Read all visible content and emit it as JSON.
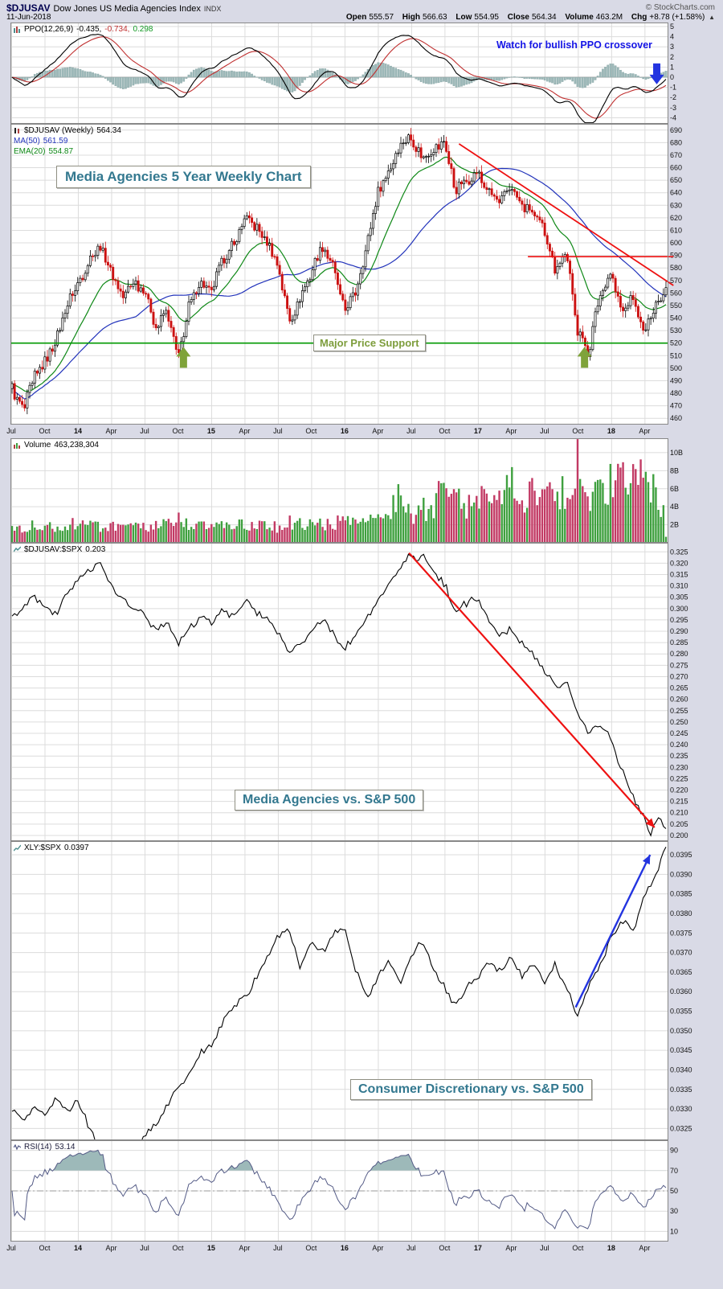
{
  "header": {
    "symbol": "$DJUSAV",
    "name": "Dow Jones US Media Agencies Index",
    "exchange": "INDX",
    "credit": "© StockCharts.com",
    "date": "11-Jun-2018",
    "quote": {
      "open_label": "Open",
      "open": "555.57",
      "high_label": "High",
      "high": "566.63",
      "low_label": "Low",
      "low": "554.95",
      "close_label": "Close",
      "close": "564.34",
      "volume_label": "Volume",
      "volume": "463.2M",
      "chg_label": "Chg",
      "chg": "+8.78 (+1.58%)",
      "chg_arrow": "▲"
    }
  },
  "annotations": {
    "ppo_note": "Watch for bullish PPO crossover",
    "weekly_title": "Media Agencies 5 Year Weekly Chart",
    "support_label": "Major Price Support",
    "ratio_label": "Media Agencies vs. S&P 500",
    "xly_label": "Consumer Discretionary vs. S&P 500"
  },
  "colors": {
    "background": "#d9dae6",
    "panel_bg": "#ffffff",
    "grid": "#dcdcdc",
    "frame": "#888888",
    "up_candle": "#000000",
    "down_candle": "#cc1111",
    "ma50": "#2233bb",
    "ema20": "#0e8816",
    "vol_up": "#3fa03f",
    "vol_down": "#c23a64",
    "ppo_line": "#000000",
    "ppo_signal": "#c03030",
    "ppo_hist_fill": "#9db9b9",
    "ppo_hist_edge": "#7e9c9c",
    "ratio_line": "#000000",
    "rsi_line": "#545b86",
    "rsi_fill": "#9db9b9",
    "trend_red": "#ee1111",
    "support_green": "#009900",
    "arrow_green": "#7fa33a",
    "arrow_blue": "#2334e0"
  },
  "axis": {
    "ticks": [
      {
        "m": 0,
        "label": "Jul",
        "year": false
      },
      {
        "m": 3,
        "label": "Oct",
        "year": false
      },
      {
        "m": 6,
        "label": "14",
        "year": true
      },
      {
        "m": 9,
        "label": "Apr",
        "year": false
      },
      {
        "m": 12,
        "label": "Jul",
        "year": false
      },
      {
        "m": 15,
        "label": "Oct",
        "year": false
      },
      {
        "m": 18,
        "label": "15",
        "year": true
      },
      {
        "m": 21,
        "label": "Apr",
        "year": false
      },
      {
        "m": 24,
        "label": "Jul",
        "year": false
      },
      {
        "m": 27,
        "label": "Oct",
        "year": false
      },
      {
        "m": 30,
        "label": "16",
        "year": true
      },
      {
        "m": 33,
        "label": "Apr",
        "year": false
      },
      {
        "m": 36,
        "label": "Jul",
        "year": false
      },
      {
        "m": 39,
        "label": "Oct",
        "year": false
      },
      {
        "m": 42,
        "label": "17",
        "year": true
      },
      {
        "m": 45,
        "label": "Apr",
        "year": false
      },
      {
        "m": 48,
        "label": "Jul",
        "year": false
      },
      {
        "m": 51,
        "label": "Oct",
        "year": false
      },
      {
        "m": 54,
        "label": "18",
        "year": true
      },
      {
        "m": 57,
        "label": "Apr",
        "year": false
      }
    ]
  },
  "chart_data": [
    {
      "id": "ppo",
      "type": "line",
      "legend_label": "PPO(12,26,9)",
      "value_ppo": "-0.435,",
      "value_signal": "-0.734,",
      "value_hist": "0.298",
      "last": {
        "ppo": -0.435,
        "signal": -0.734,
        "hist": 0.298
      },
      "ylim": [
        -4.6,
        5.4
      ],
      "yticks": [
        5,
        4,
        3,
        2,
        1,
        0,
        -1,
        -2,
        -3,
        -4
      ],
      "derived": "PPO(12,26,9) of weekly closes",
      "arrow_down": {
        "m": 58.1,
        "tip_value": -0.7,
        "tail_value": 1.6
      }
    },
    {
      "id": "price",
      "type": "candlestick",
      "legend_label": "$DJUSAV (Weekly)",
      "legend_value": "564.34",
      "ma_label": "MA(50)",
      "ma_value": "561.59",
      "ema_label": "EMA(20)",
      "ema_value": "554.87",
      "ylim": [
        455,
        695
      ],
      "ytick_range": [
        460,
        690
      ],
      "ytick_step": 10,
      "close_keypoints": [
        [
          0,
          484
        ],
        [
          1,
          466
        ],
        [
          2,
          492
        ],
        [
          3,
          506
        ],
        [
          4,
          522
        ],
        [
          5,
          552
        ],
        [
          6,
          568
        ],
        [
          7,
          588
        ],
        [
          8,
          598
        ],
        [
          9,
          576
        ],
        [
          10,
          556
        ],
        [
          11,
          570
        ],
        [
          12,
          562
        ],
        [
          13,
          532
        ],
        [
          14,
          546
        ],
        [
          15,
          506
        ],
        [
          16,
          552
        ],
        [
          17,
          568
        ],
        [
          18,
          560
        ],
        [
          19,
          588
        ],
        [
          20,
          598
        ],
        [
          21,
          620
        ],
        [
          22,
          612
        ],
        [
          23,
          600
        ],
        [
          24,
          582
        ],
        [
          25,
          538
        ],
        [
          26,
          556
        ],
        [
          27,
          576
        ],
        [
          28,
          598
        ],
        [
          29,
          580
        ],
        [
          30,
          545
        ],
        [
          31,
          560
        ],
        [
          32,
          598
        ],
        [
          33,
          640
        ],
        [
          34,
          658
        ],
        [
          35,
          678
        ],
        [
          36,
          684
        ],
        [
          37,
          668
        ],
        [
          38,
          674
        ],
        [
          39,
          680
        ],
        [
          40,
          642
        ],
        [
          41,
          650
        ],
        [
          42,
          656
        ],
        [
          43,
          640
        ],
        [
          44,
          630
        ],
        [
          45,
          646
        ],
        [
          46,
          630
        ],
        [
          47,
          624
        ],
        [
          48,
          610
        ],
        [
          49,
          580
        ],
        [
          50,
          592
        ],
        [
          51,
          532
        ],
        [
          52,
          512
        ],
        [
          53,
          558
        ],
        [
          54,
          576
        ],
        [
          55,
          545
        ],
        [
          56,
          556
        ],
        [
          57,
          528
        ],
        [
          58,
          550
        ],
        [
          59,
          564.34
        ]
      ],
      "support_line": 520,
      "resistance_line": {
        "value": 589,
        "m1": 46.5,
        "m2": 59.6
      },
      "trendline": {
        "m1": 40.3,
        "v1": 679,
        "m2": 59.6,
        "v2": 566
      },
      "up_arrows": [
        {
          "m": 15.5
        },
        {
          "m": 51.6
        }
      ],
      "up_arrow_tip_value": 517
    },
    {
      "id": "volume",
      "type": "bar",
      "legend_label": "Volume",
      "legend_value": "463,238,304",
      "ylim": [
        0,
        11.6
      ],
      "yticks_labels": [
        [
          2,
          "2B"
        ],
        [
          4,
          "4B"
        ],
        [
          6,
          "6B"
        ],
        [
          8,
          "8B"
        ],
        [
          10,
          "10B"
        ]
      ],
      "keypoints_billions": [
        [
          0,
          1.7
        ],
        [
          2,
          1.9
        ],
        [
          4,
          1.8
        ],
        [
          6,
          2.1
        ],
        [
          8,
          1.9
        ],
        [
          10,
          1.6
        ],
        [
          12,
          1.7
        ],
        [
          14,
          2.0
        ],
        [
          15,
          2.6
        ],
        [
          16,
          1.9
        ],
        [
          18,
          1.8
        ],
        [
          20,
          2.0
        ],
        [
          22,
          1.9
        ],
        [
          24,
          1.8
        ],
        [
          25,
          2.4
        ],
        [
          26,
          2.0
        ],
        [
          28,
          2.1
        ],
        [
          30,
          2.3
        ],
        [
          31,
          2.0
        ],
        [
          32,
          2.2
        ],
        [
          33,
          2.4
        ],
        [
          34,
          2.8
        ],
        [
          34.8,
          5.8
        ],
        [
          35.2,
          3.0
        ],
        [
          36,
          3.2
        ],
        [
          37,
          3.6
        ],
        [
          38,
          4.2
        ],
        [
          38.8,
          6.3
        ],
        [
          39.2,
          4.4
        ],
        [
          40,
          4.8
        ],
        [
          41,
          4.2
        ],
        [
          42,
          4.6
        ],
        [
          43,
          5.4
        ],
        [
          44,
          4.4
        ],
        [
          45,
          6.4
        ],
        [
          46,
          5.0
        ],
        [
          47,
          5.6
        ],
        [
          48,
          4.6
        ],
        [
          49,
          6.0
        ],
        [
          50,
          5.2
        ],
        [
          50.7,
          6.0
        ],
        [
          51,
          10.9
        ],
        [
          51.3,
          6.2
        ],
        [
          52,
          5.4
        ],
        [
          53,
          5.0
        ],
        [
          54,
          7.0
        ],
        [
          54.7,
          8.0
        ],
        [
          55,
          11.2
        ],
        [
          55.3,
          7.0
        ],
        [
          56,
          6.4
        ],
        [
          57,
          7.6
        ],
        [
          58,
          5.4
        ],
        [
          58.7,
          4.4
        ],
        [
          59,
          0.5
        ]
      ]
    },
    {
      "id": "ratio",
      "type": "line",
      "legend_label": "$DJUSAV:$SPX",
      "legend_value": "0.203",
      "ylim": [
        0.1975,
        0.329
      ],
      "ytick_range": [
        0.2,
        0.325
      ],
      "ytick_step": 0.005,
      "ytick_decimals": 3,
      "keypoints": [
        [
          0,
          0.296
        ],
        [
          1,
          0.3
        ],
        [
          2,
          0.306
        ],
        [
          3,
          0.3
        ],
        [
          4,
          0.297
        ],
        [
          5,
          0.308
        ],
        [
          6,
          0.313
        ],
        [
          7,
          0.317
        ],
        [
          8,
          0.32
        ],
        [
          9,
          0.31
        ],
        [
          10,
          0.305
        ],
        [
          11,
          0.3
        ],
        [
          12,
          0.297
        ],
        [
          13,
          0.29
        ],
        [
          14,
          0.294
        ],
        [
          15,
          0.284
        ],
        [
          16,
          0.291
        ],
        [
          17,
          0.296
        ],
        [
          18,
          0.294
        ],
        [
          19,
          0.299
        ],
        [
          20,
          0.297
        ],
        [
          21,
          0.303
        ],
        [
          22,
          0.299
        ],
        [
          23,
          0.296
        ],
        [
          24,
          0.289
        ],
        [
          25,
          0.281
        ],
        [
          26,
          0.284
        ],
        [
          27,
          0.29
        ],
        [
          28,
          0.296
        ],
        [
          29,
          0.289
        ],
        [
          30,
          0.283
        ],
        [
          31,
          0.288
        ],
        [
          32,
          0.296
        ],
        [
          33,
          0.303
        ],
        [
          34,
          0.31
        ],
        [
          35,
          0.318
        ],
        [
          35.8,
          0.3245
        ],
        [
          36.5,
          0.321
        ],
        [
          37,
          0.3235
        ],
        [
          38,
          0.316
        ],
        [
          39,
          0.311
        ],
        [
          40,
          0.3
        ],
        [
          41,
          0.302
        ],
        [
          42,
          0.3045
        ],
        [
          43,
          0.294
        ],
        [
          44,
          0.288
        ],
        [
          45,
          0.291
        ],
        [
          46,
          0.2845
        ],
        [
          47,
          0.28
        ],
        [
          48,
          0.2725
        ],
        [
          49,
          0.2655
        ],
        [
          50,
          0.268
        ],
        [
          51,
          0.254
        ],
        [
          52,
          0.246
        ],
        [
          53,
          0.25
        ],
        [
          54,
          0.2435
        ],
        [
          55,
          0.2285
        ],
        [
          56,
          0.217
        ],
        [
          57,
          0.2075
        ],
        [
          57.6,
          0.2005
        ],
        [
          58.3,
          0.2085
        ],
        [
          59,
          0.203
        ]
      ],
      "decline_arrow": {
        "m1": 35.8,
        "v1": 0.3245,
        "m2": 57.9,
        "v2": 0.2035
      }
    },
    {
      "id": "xly",
      "type": "line",
      "legend_label": "XLY:$SPX",
      "legend_value": "0.0397",
      "ylim": [
        0.0322,
        0.03985
      ],
      "ytick_range": [
        0.0325,
        0.0395
      ],
      "ytick_step": 0.0005,
      "ytick_decimals": 4,
      "keypoints": [
        [
          0,
          0.033
        ],
        [
          1,
          0.03265
        ],
        [
          2,
          0.0331
        ],
        [
          3,
          0.03285
        ],
        [
          4,
          0.0333
        ],
        [
          5,
          0.03295
        ],
        [
          6,
          0.0332
        ],
        [
          7,
          0.0325
        ],
        [
          8,
          0.0319
        ],
        [
          9,
          0.03155
        ],
        [
          10,
          0.0321
        ],
        [
          11,
          0.0318
        ],
        [
          12,
          0.0323
        ],
        [
          13,
          0.0327
        ],
        [
          14,
          0.0331
        ],
        [
          15,
          0.0336
        ],
        [
          16,
          0.0339
        ],
        [
          17,
          0.0344
        ],
        [
          18,
          0.0347
        ],
        [
          19,
          0.0352
        ],
        [
          20,
          0.0356
        ],
        [
          21,
          0.0359
        ],
        [
          22,
          0.0363
        ],
        [
          23,
          0.0369
        ],
        [
          24,
          0.03745
        ],
        [
          25,
          0.0376
        ],
        [
          26,
          0.0366
        ],
        [
          27,
          0.0373
        ],
        [
          28,
          0.037
        ],
        [
          29,
          0.0375
        ],
        [
          30,
          0.0376
        ],
        [
          31,
          0.0366
        ],
        [
          32,
          0.0358
        ],
        [
          33,
          0.0364
        ],
        [
          34,
          0.0368
        ],
        [
          35,
          0.0362
        ],
        [
          36,
          0.0369
        ],
        [
          37,
          0.0373
        ],
        [
          38,
          0.0366
        ],
        [
          39,
          0.0361
        ],
        [
          40,
          0.0356
        ],
        [
          41,
          0.0361
        ],
        [
          42,
          0.0364
        ],
        [
          43,
          0.0368
        ],
        [
          44,
          0.0365
        ],
        [
          45,
          0.0369
        ],
        [
          46,
          0.0364
        ],
        [
          47,
          0.0368
        ],
        [
          48,
          0.0362
        ],
        [
          49,
          0.0367
        ],
        [
          50,
          0.0361
        ],
        [
          51,
          0.0354
        ],
        [
          52,
          0.0361
        ],
        [
          53,
          0.0367
        ],
        [
          54,
          0.0373
        ],
        [
          55,
          0.0379
        ],
        [
          56,
          0.0375
        ],
        [
          57,
          0.0384
        ],
        [
          58,
          0.0389
        ],
        [
          59,
          0.0397
        ]
      ],
      "advance_arrow": {
        "m1": 50.8,
        "v1": 0.0356,
        "m2": 57.5,
        "v2": 0.0395
      }
    },
    {
      "id": "rsi",
      "type": "line",
      "legend_label": "RSI(14)",
      "legend_value": "53.14",
      "last": 53.14,
      "ylim": [
        0,
        100
      ],
      "yticks": [
        90,
        70,
        50,
        30,
        10
      ],
      "overbought": 70,
      "oversold": 30,
      "midline": 50,
      "derived": "RSI(14) of weekly closes"
    }
  ]
}
